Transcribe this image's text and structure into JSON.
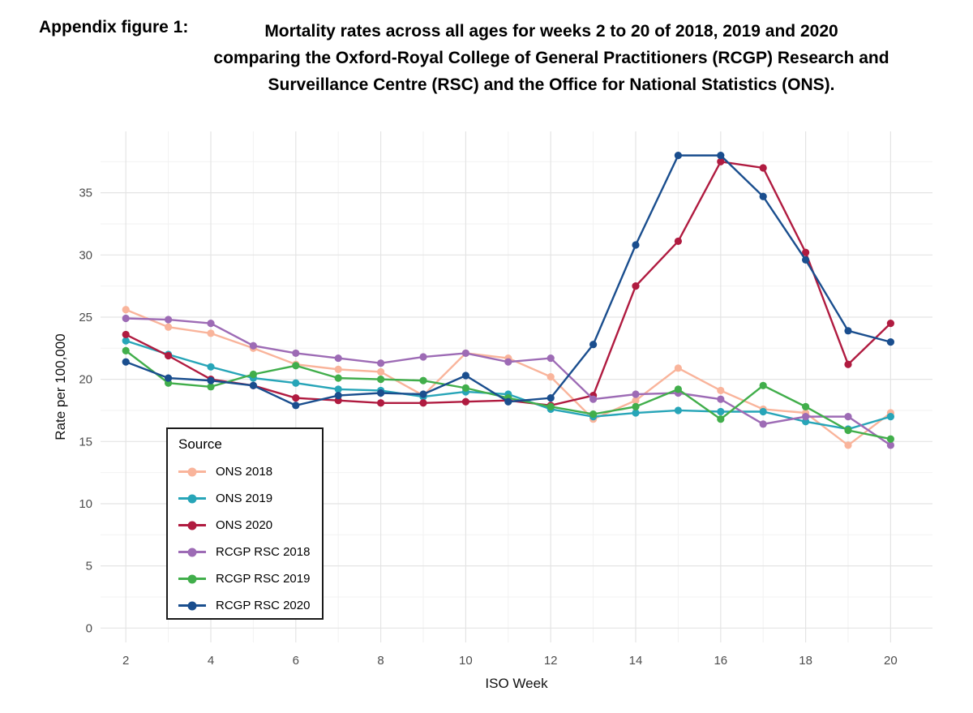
{
  "title": {
    "label": "Appendix figure 1:",
    "lines": [
      "Mortality rates across all ages for weeks 2 to 20 of 2018, 2019 and 2020",
      "comparing the Oxford-Royal College of General Practitioners (RCGP) Research and",
      "Surveillance Centre (RSC) and the Office for National Statistics (ONS)."
    ]
  },
  "chart_data": {
    "type": "line",
    "xlabel": "ISO Week",
    "ylabel": "Rate per 100,000",
    "xlim": [
      2,
      20
    ],
    "ylim": [
      0,
      38
    ],
    "x_ticks": [
      2,
      4,
      6,
      8,
      10,
      12,
      14,
      16,
      18,
      20
    ],
    "y_ticks": [
      0,
      5,
      10,
      15,
      20,
      25,
      30,
      35
    ],
    "grid": true,
    "legend": {
      "title": "Source",
      "position": "inside-bottom-left"
    },
    "x": [
      2,
      3,
      4,
      5,
      6,
      7,
      8,
      9,
      10,
      11,
      12,
      13,
      14,
      15,
      16,
      17,
      18,
      19,
      20
    ],
    "series": [
      {
        "name": "ONS 2018",
        "color": "#F9B49B",
        "values": [
          25.6,
          24.2,
          23.7,
          22.5,
          21.2,
          20.8,
          20.6,
          18.7,
          22.1,
          21.7,
          20.2,
          16.8,
          18.3,
          20.9,
          19.1,
          17.6,
          17.3,
          14.7,
          17.3
        ]
      },
      {
        "name": "ONS 2019",
        "color": "#27A5B8",
        "values": [
          23.1,
          22.0,
          21.0,
          20.1,
          19.7,
          19.2,
          19.1,
          18.6,
          19.0,
          18.8,
          17.6,
          17.0,
          17.3,
          17.5,
          17.4,
          17.4,
          16.6,
          16.0,
          17.0
        ]
      },
      {
        "name": "ONS 2020",
        "color": "#B01B40",
        "values": [
          23.6,
          21.9,
          20.0,
          19.5,
          18.5,
          18.3,
          18.1,
          18.1,
          18.2,
          18.3,
          17.9,
          18.7,
          27.5,
          31.1,
          37.5,
          37.0,
          30.2,
          21.2,
          24.5
        ]
      },
      {
        "name": "RCGP RSC 2018",
        "color": "#9D6BB5",
        "values": [
          24.9,
          24.8,
          24.5,
          22.7,
          22.1,
          21.7,
          21.3,
          21.8,
          22.1,
          21.4,
          21.7,
          18.4,
          18.8,
          18.9,
          18.4,
          16.4,
          17.0,
          17.0,
          14.7
        ]
      },
      {
        "name": "RCGP RSC 2019",
        "color": "#41AE4B",
        "values": [
          22.3,
          19.7,
          19.4,
          20.4,
          21.1,
          20.1,
          20.0,
          19.9,
          19.3,
          18.5,
          17.8,
          17.2,
          17.8,
          19.2,
          16.8,
          19.5,
          17.8,
          15.9,
          15.2
        ]
      },
      {
        "name": "RCGP RSC 2020",
        "color": "#1A4E8E",
        "values": [
          21.4,
          20.1,
          19.9,
          19.5,
          17.9,
          18.7,
          18.9,
          18.8,
          20.3,
          18.2,
          18.5,
          22.8,
          30.8,
          38.0,
          38.0,
          34.7,
          29.6,
          23.9,
          23.0
        ]
      }
    ]
  }
}
